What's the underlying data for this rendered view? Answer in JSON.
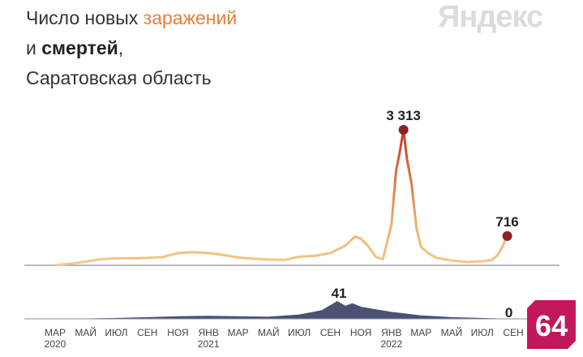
{
  "title": {
    "line1_prefix": "Число новых ",
    "line1_accent": "заражений",
    "line2_prefix": "и ",
    "line2_bold": "смертей",
    "line2_suffix": ",",
    "line3": "Саратовская область"
  },
  "brand_text": "Яндекс",
  "badge_text": "64",
  "colors": {
    "cases_low": "#f2c98a",
    "cases_high": "#c0392b",
    "cases_marker": "#8b2323",
    "deaths_fill": "#4b5173",
    "axis": "#8a8fa8",
    "badge": "#c2185b"
  },
  "chart_data": [
    {
      "type": "line",
      "x": [
        "2020-03-01",
        "2020-04-01",
        "2020-05-01",
        "2020-06-01",
        "2020-07-01",
        "2020-08-01",
        "2020-09-01",
        "2020-10-01",
        "2020-11-01",
        "2020-12-01",
        "2021-01-01",
        "2021-02-01",
        "2021-03-01",
        "2021-04-01",
        "2021-05-01",
        "2021-06-01",
        "2021-07-01",
        "2021-08-01",
        "2021-09-01",
        "2021-10-01",
        "2021-10-20",
        "2021-11-01",
        "2021-11-15",
        "2021-12-01",
        "2021-12-15",
        "2022-01-01",
        "2022-01-10",
        "2022-01-18",
        "2022-01-25",
        "2022-02-01",
        "2022-02-10",
        "2022-02-20",
        "2022-03-01",
        "2022-03-15",
        "2022-04-01",
        "2022-05-01",
        "2022-06-01",
        "2022-07-01",
        "2022-07-20",
        "2022-08-01",
        "2022-08-10",
        "2022-08-20"
      ],
      "values": [
        5,
        40,
        90,
        150,
        170,
        170,
        180,
        200,
        300,
        320,
        300,
        250,
        190,
        160,
        140,
        130,
        210,
        230,
        300,
        480,
        700,
        650,
        480,
        200,
        150,
        1000,
        2300,
        2800,
        3313,
        2600,
        2000,
        900,
        450,
        300,
        180,
        120,
        80,
        100,
        130,
        250,
        450,
        716
      ],
      "annotations": [
        {
          "label": "3 313",
          "x": "2022-01-25",
          "value": 3313
        },
        {
          "label": "716",
          "x": "2022-08-20",
          "value": 716
        }
      ]
    },
    {
      "type": "area",
      "x": [
        "2020-03-01",
        "2020-05-01",
        "2020-07-01",
        "2020-09-01",
        "2020-11-01",
        "2021-01-01",
        "2021-03-01",
        "2021-05-01",
        "2021-07-01",
        "2021-08-15",
        "2021-09-15",
        "2021-10-01",
        "2021-10-15",
        "2021-11-01",
        "2021-12-01",
        "2022-01-01",
        "2022-02-01",
        "2022-03-01",
        "2022-04-01",
        "2022-05-01",
        "2022-06-01",
        "2022-07-01",
        "2022-08-01",
        "2022-08-20"
      ],
      "values": [
        0,
        1,
        2,
        4,
        6,
        7,
        6,
        5,
        10,
        20,
        41,
        30,
        36,
        28,
        22,
        16,
        12,
        8,
        6,
        4,
        3,
        2,
        1,
        0
      ],
      "annotations": [
        {
          "label": "41",
          "x": "2021-09-15",
          "value": 41
        },
        {
          "label": "0",
          "x": "2022-08-20",
          "value": 0
        }
      ]
    }
  ],
  "x_axis": {
    "ticks": [
      {
        "label": "МАР",
        "sub": "2020",
        "date": "2020-03-01"
      },
      {
        "label": "МАЙ",
        "sub": "",
        "date": "2020-05-01"
      },
      {
        "label": "ИЮЛ",
        "sub": "",
        "date": "2020-07-01"
      },
      {
        "label": "СЕН",
        "sub": "",
        "date": "2020-09-01"
      },
      {
        "label": "НОЯ",
        "sub": "",
        "date": "2020-11-01"
      },
      {
        "label": "ЯНВ",
        "sub": "2021",
        "date": "2021-01-01"
      },
      {
        "label": "МАР",
        "sub": "",
        "date": "2021-03-01"
      },
      {
        "label": "МАЙ",
        "sub": "",
        "date": "2021-05-01"
      },
      {
        "label": "ИЮЛ",
        "sub": "",
        "date": "2021-07-01"
      },
      {
        "label": "СЕН",
        "sub": "",
        "date": "2021-09-01"
      },
      {
        "label": "НОЯ",
        "sub": "",
        "date": "2021-11-01"
      },
      {
        "label": "ЯНВ",
        "sub": "2022",
        "date": "2022-01-01"
      },
      {
        "label": "МАР",
        "sub": "",
        "date": "2022-03-01"
      },
      {
        "label": "МАЙ",
        "sub": "",
        "date": "2022-05-01"
      },
      {
        "label": "ИЮЛ",
        "sub": "",
        "date": "2022-07-01"
      },
      {
        "label": "СЕН",
        "sub": "",
        "date": "2022-09-01"
      }
    ]
  }
}
